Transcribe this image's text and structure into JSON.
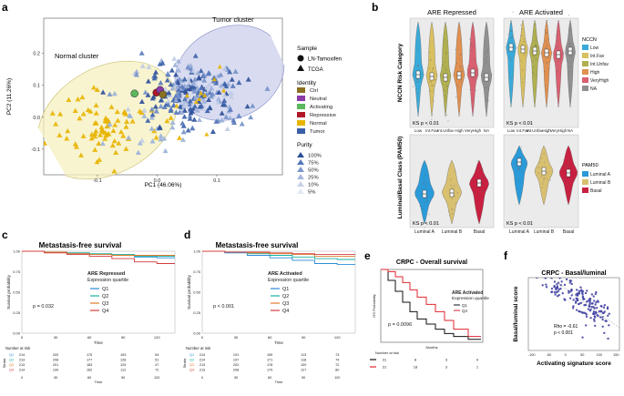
{
  "colors": {
    "tumor": "#3a5fa8",
    "normal": "#e8b400",
    "repressive": "#b0182a",
    "activating": "#5cb85c",
    "neutral": "#8b3aa8",
    "ctrl": "#8a7020",
    "q1": "#2b8cd8",
    "q2": "#1ab0a0",
    "q3": "#e07b2a",
    "q4": "#d43c3c"
  },
  "panels": {
    "a": "a",
    "b": "b",
    "c": "c",
    "d": "d",
    "e": "e",
    "f": "f"
  },
  "chart_data": [
    {
      "id": "a",
      "type": "scatter",
      "xlabel": "PC1 (46.06%)",
      "ylabel": "PC2 (11.26%)",
      "xticks": [
        "-0.1",
        "0.0",
        "0.1"
      ],
      "yticks": [
        "0.2",
        "0.1",
        "0.0",
        "-0.1"
      ],
      "xlim": [
        -0.19,
        0.21
      ],
      "ylim": [
        -0.18,
        0.31
      ],
      "annotations": [
        "Normal cluster",
        "Tumor cluster"
      ],
      "legend": {
        "sample_title": "Sample",
        "sample": [
          "LN-Tamoxifen",
          "TCGA"
        ],
        "identity_title": "Identity",
        "identity": [
          "Ctrl",
          "Neutral",
          "Activating",
          "Repressive",
          "Normal",
          "Tumor"
        ],
        "purity_title": "Purity",
        "purity": [
          "100%",
          "75%",
          "50%",
          "25%",
          "10%",
          "5%"
        ]
      },
      "centers": {
        "tumor": [
          0.06,
          0.07
        ],
        "normal": [
          -0.09,
          -0.03
        ]
      }
    },
    {
      "id": "b",
      "type": "violin",
      "col_titles": [
        "ARE Repressed",
        "ARE Activated"
      ],
      "row1_ylabel": "NCCN Risk Category",
      "row2_ylabel": "Luminal/Basal Class (PAM50)",
      "nccn_categories": [
        "Low",
        "Int.Fav",
        "Int.Unfav",
        "High",
        "VeryHigh",
        "NA"
      ],
      "nccn_legend_title": "NCCN",
      "nccn_colors": [
        "#3aaad8",
        "#d8c060",
        "#b0b050",
        "#e09050",
        "#d86070",
        "#909090"
      ],
      "pam50_categories": [
        "Luminal A",
        "Luminal B",
        "Basal"
      ],
      "pam50_legend_title": "PAM50",
      "pam50_colors": [
        "#2b9ad8",
        "#d8c070",
        "#c82040"
      ],
      "ks_label": "KS p < 0.01"
    },
    {
      "id": "c",
      "type": "line",
      "title": "Metastasis-free survival",
      "ylabel": "Survival probability",
      "xlabel": "Time",
      "xticks": [
        "0",
        "30",
        "60",
        "90",
        "120"
      ],
      "yticks": [
        "1.00",
        "0.75",
        "0.50",
        "0.25",
        "0.00"
      ],
      "legend_title": "ARE Repressed",
      "legend_subtitle": "Expression quartile",
      "series": [
        {
          "name": "Q1",
          "x": [
            0,
            20,
            40,
            60,
            80,
            100,
            120,
            136
          ],
          "y": [
            1.0,
            0.99,
            0.98,
            0.96,
            0.95,
            0.93,
            0.92,
            0.92
          ]
        },
        {
          "name": "Q2",
          "x": [
            0,
            20,
            40,
            60,
            80,
            100,
            120,
            136
          ],
          "y": [
            1.0,
            0.99,
            0.98,
            0.97,
            0.96,
            0.94,
            0.94,
            0.94
          ]
        },
        {
          "name": "Q3",
          "x": [
            0,
            20,
            40,
            60,
            80,
            100,
            120,
            136
          ],
          "y": [
            1.0,
            0.99,
            0.97,
            0.96,
            0.95,
            0.95,
            0.95,
            0.95
          ]
        },
        {
          "name": "Q4",
          "x": [
            0,
            20,
            40,
            60,
            80,
            100,
            120,
            136
          ],
          "y": [
            1.0,
            0.98,
            0.96,
            0.94,
            0.91,
            0.87,
            0.85,
            0.85
          ]
        }
      ],
      "pvalue": "p = 0.032",
      "risk_title": "Number at risk",
      "risk_ylabel": "Strata",
      "risk_rows": [
        [
          "214",
          "200",
          "175",
          "153",
          "54"
        ],
        [
          "213",
          "208",
          "177",
          "128",
          "51"
        ],
        [
          "213",
          "201",
          "183",
          "125",
          "47"
        ],
        [
          "214",
          "190",
          "162",
          "112",
          "72"
        ]
      ]
    },
    {
      "id": "d",
      "type": "line",
      "title": "Metastasis-free survival",
      "ylabel": "Survival probability",
      "xlabel": "Time",
      "xticks": [
        "0",
        "30",
        "60",
        "90",
        "120"
      ],
      "yticks": [
        "1.00",
        "0.75",
        "0.50",
        "0.25",
        "0.00"
      ],
      "legend_title": "ARE Activated",
      "legend_subtitle": "Expression quartile",
      "series": [
        {
          "name": "Q1",
          "x": [
            0,
            20,
            40,
            60,
            80,
            100,
            120,
            136
          ],
          "y": [
            1.0,
            0.98,
            0.95,
            0.92,
            0.89,
            0.85,
            0.84,
            0.84
          ]
        },
        {
          "name": "Q2",
          "x": [
            0,
            20,
            40,
            60,
            80,
            100,
            120,
            136
          ],
          "y": [
            1.0,
            0.99,
            0.97,
            0.95,
            0.93,
            0.91,
            0.9,
            0.9
          ]
        },
        {
          "name": "Q3",
          "x": [
            0,
            20,
            40,
            60,
            80,
            100,
            120,
            136
          ],
          "y": [
            1.0,
            0.99,
            0.98,
            0.97,
            0.96,
            0.94,
            0.94,
            0.94
          ]
        },
        {
          "name": "Q4",
          "x": [
            0,
            20,
            40,
            60,
            80,
            100,
            120,
            136
          ],
          "y": [
            1.0,
            0.99,
            0.99,
            0.98,
            0.97,
            0.96,
            0.96,
            0.96
          ]
        }
      ],
      "pvalue": "p < 0.001",
      "risk_title": "Number at risk",
      "risk_ylabel": "Strata",
      "risk_rows": [
        [
          "214",
          "191",
          "159",
          "113",
          "73"
        ],
        [
          "214",
          "197",
          "171",
          "118",
          "74"
        ],
        [
          "213",
          "202",
          "178",
          "109",
          "72"
        ],
        [
          "213",
          "208",
          "179",
          "127",
          "80"
        ]
      ]
    },
    {
      "id": "e",
      "type": "line",
      "title": "CRPC - Overall survival",
      "ylabel": "OS Probability",
      "xlabel": "Months",
      "legend_title": "ARE Activated",
      "legend_subtitle": "Expression quartile",
      "series": [
        {
          "name": "Q1",
          "x": [
            0,
            4,
            8,
            12,
            16,
            20,
            25,
            30,
            35,
            40,
            48,
            55
          ],
          "y": [
            1.0,
            0.85,
            0.7,
            0.55,
            0.42,
            0.32,
            0.25,
            0.18,
            0.12,
            0.08,
            0.04,
            0.04
          ]
        },
        {
          "name": "Q4",
          "x": [
            0,
            4,
            8,
            12,
            16,
            20,
            25,
            30,
            35,
            40,
            48,
            55
          ],
          "y": [
            1.0,
            0.97,
            0.9,
            0.82,
            0.72,
            0.62,
            0.52,
            0.42,
            0.3,
            0.18,
            0.08,
            0.08
          ]
        }
      ],
      "pvalue": "p = 0.0096",
      "risk_title": "Number at risk",
      "risk_rows": [
        [
          "31",
          "8",
          "3",
          "0"
        ],
        [
          "31",
          "18",
          "3",
          "1"
        ]
      ]
    },
    {
      "id": "f",
      "type": "scatter",
      "title": "CRPC - Basal/luminal",
      "xlabel": "Activating signature score",
      "ylabel": "Basal/luminal score",
      "xticks": [
        "-100",
        "-50",
        "0",
        "50",
        "100",
        "150"
      ],
      "xlim": [
        -110,
        160
      ],
      "ylim": [
        -4,
        4
      ],
      "annotation": [
        "Rho = -0.61",
        "p < 0.001"
      ]
    }
  ]
}
